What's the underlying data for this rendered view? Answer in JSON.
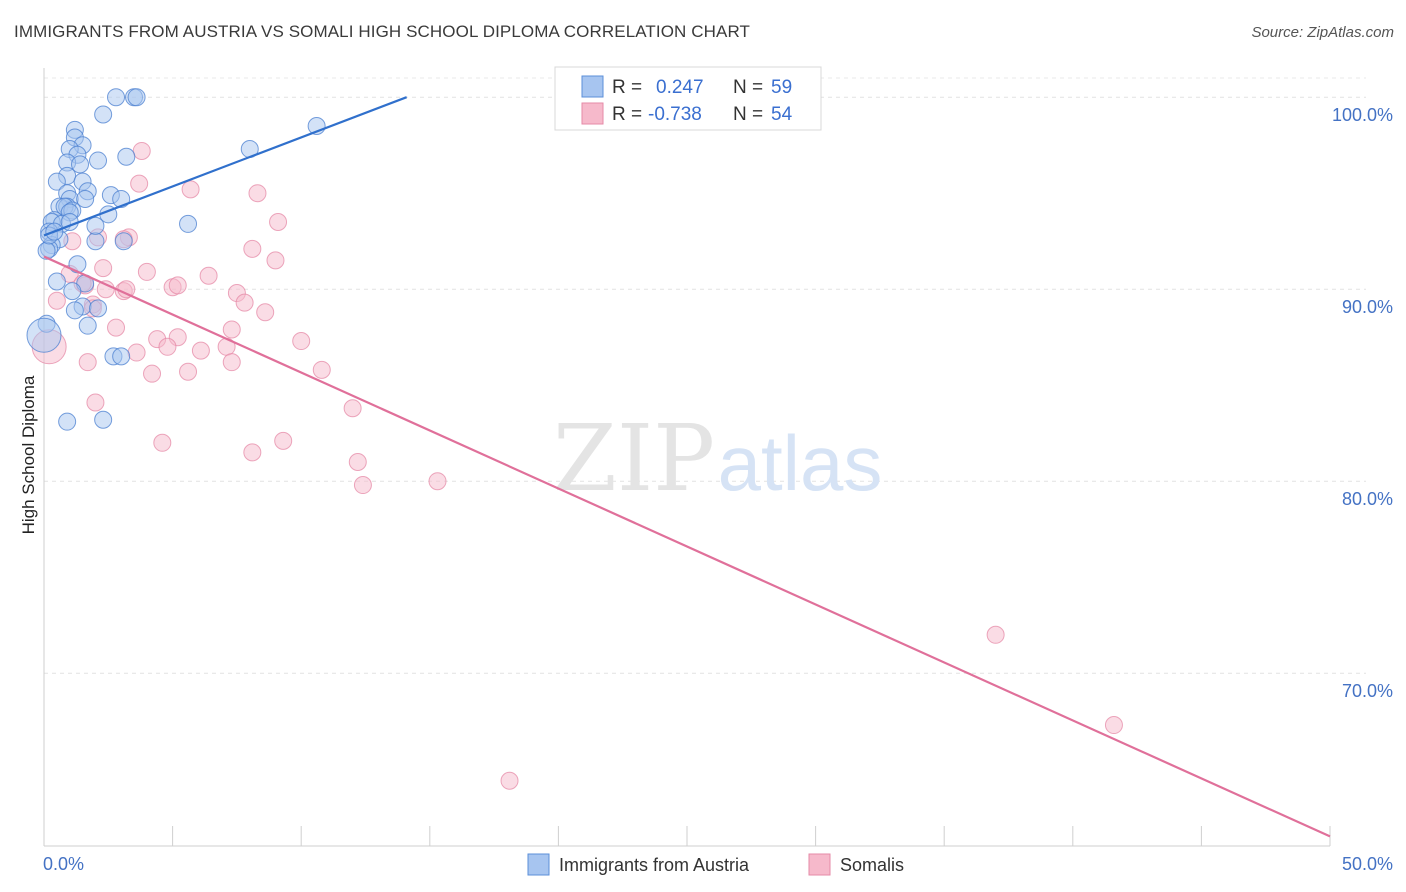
{
  "title": "IMMIGRANTS FROM AUSTRIA VS SOMALI HIGH SCHOOL DIPLOMA CORRELATION CHART",
  "source": "Source: ZipAtlas.com",
  "watermark": {
    "zip": "ZIP",
    "atlas": "atlas"
  },
  "legend_top": {
    "series": [
      {
        "r_label": "R =",
        "r_value": "0.247",
        "n_label": "N =",
        "n_value": "59",
        "color": "#a7c5f0",
        "stroke": "#5b8fd9"
      },
      {
        "r_label": "R =",
        "r_value": "-0.738",
        "n_label": "N =",
        "n_value": "54",
        "color": "#f6b9cb",
        "stroke": "#e58aa7"
      }
    ]
  },
  "chart_data": {
    "type": "scatter",
    "title": "IMMIGRANTS FROM AUSTRIA VS SOMALI HIGH SCHOOL DIPLOMA CORRELATION CHART",
    "xlabel": "",
    "ylabel": "High School Diploma",
    "xlim": [
      0,
      50
    ],
    "ylim": [
      61,
      101
    ],
    "x_tick_labels": [
      "0.0%",
      "50.0%"
    ],
    "y_ticks": [
      70,
      80,
      90,
      100
    ],
    "y_tick_labels": [
      "70.0%",
      "80.0%",
      "90.0%",
      "100.0%"
    ],
    "grid": true,
    "legend": [
      "Immigrants from Austria",
      "Somalis"
    ],
    "series": [
      {
        "name": "Immigrants from Austria",
        "color": "#a7c5f0",
        "stroke": "#4a7fd0",
        "trend": {
          "x": [
            0,
            14.1
          ],
          "y": [
            92.8,
            100.0
          ],
          "color": "#3070cc"
        },
        "points": [
          [
            2.8,
            100.0
          ],
          [
            3.5,
            100.0
          ],
          [
            3.6,
            100.0
          ],
          [
            2.3,
            99.1
          ],
          [
            1.2,
            98.3
          ],
          [
            1.2,
            97.9
          ],
          [
            1.5,
            97.5
          ],
          [
            1.0,
            97.3
          ],
          [
            1.3,
            97.0
          ],
          [
            3.2,
            96.9
          ],
          [
            2.1,
            96.7
          ],
          [
            0.9,
            96.6
          ],
          [
            1.4,
            96.5
          ],
          [
            0.9,
            95.9
          ],
          [
            0.5,
            95.6
          ],
          [
            1.5,
            95.6
          ],
          [
            1.7,
            95.1
          ],
          [
            0.9,
            95.0
          ],
          [
            2.6,
            94.9
          ],
          [
            1.0,
            94.7
          ],
          [
            1.6,
            94.7
          ],
          [
            3.0,
            94.7
          ],
          [
            0.6,
            94.3
          ],
          [
            0.9,
            94.3
          ],
          [
            0.8,
            94.3
          ],
          [
            1.1,
            94.1
          ],
          [
            1.0,
            94.0
          ],
          [
            2.5,
            93.9
          ],
          [
            0.4,
            93.6
          ],
          [
            0.3,
            93.5
          ],
          [
            0.7,
            93.4
          ],
          [
            5.6,
            93.4
          ],
          [
            1.0,
            93.5
          ],
          [
            0.2,
            93.0
          ],
          [
            0.6,
            92.6
          ],
          [
            2.0,
            92.5
          ],
          [
            3.1,
            92.5
          ],
          [
            2.0,
            93.3
          ],
          [
            0.3,
            92.3
          ],
          [
            0.2,
            92.1
          ],
          [
            0.1,
            92.0
          ],
          [
            1.3,
            91.3
          ],
          [
            0.5,
            90.4
          ],
          [
            1.6,
            90.3
          ],
          [
            1.1,
            89.9
          ],
          [
            1.5,
            89.1
          ],
          [
            2.1,
            89.0
          ],
          [
            1.2,
            88.9
          ],
          [
            1.7,
            88.1
          ],
          [
            0.1,
            88.2
          ],
          [
            0.0,
            87.6
          ],
          [
            2.7,
            86.5
          ],
          [
            3.0,
            86.5
          ],
          [
            0.9,
            83.1
          ],
          [
            2.3,
            83.2
          ],
          [
            8.0,
            97.3
          ],
          [
            10.6,
            98.5
          ],
          [
            0.2,
            92.8
          ],
          [
            0.4,
            93.0
          ]
        ]
      },
      {
        "name": "Somalis",
        "color": "#f6b9cb",
        "stroke": "#e58aa7",
        "trend": {
          "x": [
            0,
            50
          ],
          "y": [
            91.7,
            61.5
          ],
          "color": "#e0709a"
        },
        "points": [
          [
            3.8,
            97.2
          ],
          [
            3.7,
            95.5
          ],
          [
            5.7,
            95.2
          ],
          [
            8.3,
            95.0
          ],
          [
            9.1,
            93.5
          ],
          [
            3.3,
            92.7
          ],
          [
            1.1,
            92.5
          ],
          [
            2.1,
            92.7
          ],
          [
            3.1,
            92.6
          ],
          [
            8.1,
            92.1
          ],
          [
            9.0,
            91.5
          ],
          [
            2.3,
            91.1
          ],
          [
            1.0,
            90.8
          ],
          [
            4.0,
            90.9
          ],
          [
            6.4,
            90.7
          ],
          [
            1.6,
            90.2
          ],
          [
            2.4,
            90.0
          ],
          [
            5.0,
            90.1
          ],
          [
            5.2,
            90.2
          ],
          [
            3.1,
            89.9
          ],
          [
            7.5,
            89.8
          ],
          [
            0.5,
            89.4
          ],
          [
            1.9,
            89.2
          ],
          [
            7.8,
            89.3
          ],
          [
            8.6,
            88.8
          ],
          [
            2.8,
            88.0
          ],
          [
            7.3,
            87.9
          ],
          [
            4.4,
            87.4
          ],
          [
            1.9,
            89.0
          ],
          [
            5.2,
            87.5
          ],
          [
            10.0,
            87.3
          ],
          [
            4.8,
            87.0
          ],
          [
            6.1,
            86.8
          ],
          [
            7.1,
            87.0
          ],
          [
            3.6,
            86.7
          ],
          [
            1.7,
            86.2
          ],
          [
            7.3,
            86.2
          ],
          [
            4.2,
            85.6
          ],
          [
            5.6,
            85.7
          ],
          [
            10.8,
            85.8
          ],
          [
            2.0,
            84.1
          ],
          [
            12.0,
            83.8
          ],
          [
            4.6,
            82.0
          ],
          [
            9.3,
            82.1
          ],
          [
            8.1,
            81.5
          ],
          [
            12.2,
            81.0
          ],
          [
            12.4,
            79.8
          ],
          [
            15.3,
            80.0
          ],
          [
            37.0,
            72.0
          ],
          [
            41.6,
            67.3
          ],
          [
            18.1,
            64.4
          ],
          [
            0.2,
            87.0
          ],
          [
            1.5,
            90.3
          ],
          [
            3.2,
            90.0
          ]
        ]
      }
    ]
  }
}
